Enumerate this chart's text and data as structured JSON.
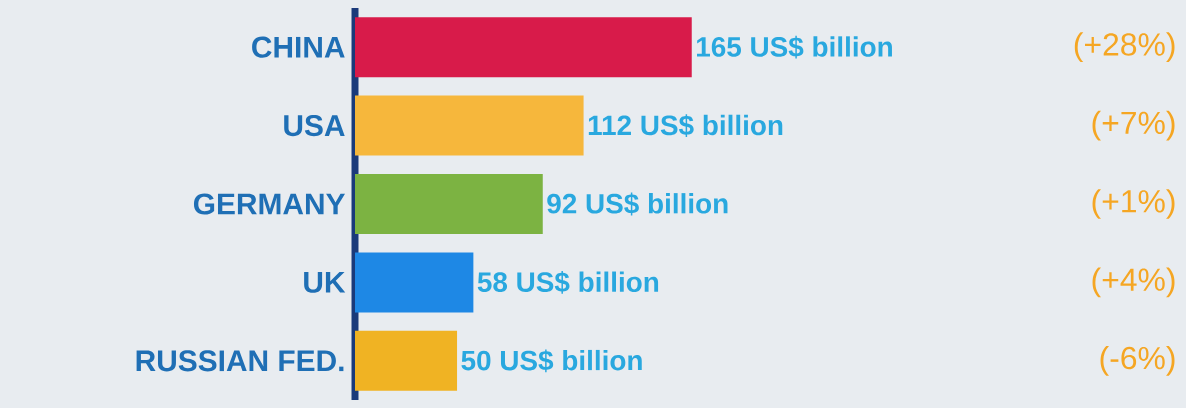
{
  "chart_data": {
    "type": "bar",
    "orientation": "horizontal",
    "categories": [
      "CHINA",
      "USA",
      "GERMANY",
      "UK",
      "RUSSIAN FED."
    ],
    "values": [
      165,
      112,
      92,
      58,
      50
    ],
    "colors": [
      "#d81b4a",
      "#f6b73c",
      "#7cb342",
      "#1e88e5",
      "#f0b323"
    ],
    "value_labels": [
      "165 US$ billion",
      "112 US$ billion",
      "92 US$ billion",
      "58 US$ billion",
      "50 US$ billion"
    ],
    "annotations": [
      "(+28%)",
      "(+7%)",
      "(+1%)",
      "(+4%)",
      "(-6%)"
    ]
  }
}
